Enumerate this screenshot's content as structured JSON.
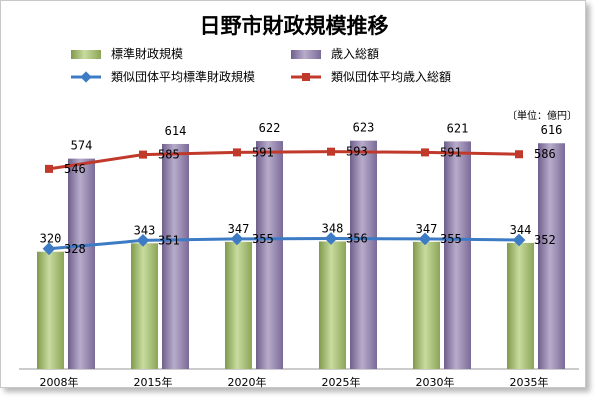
{
  "chart_data": {
    "type": "bar",
    "title": "日野市財政規模推移",
    "unit_label": "〔単位：億円〕",
    "categories": [
      "2008年",
      "2015年",
      "2020年",
      "2025年",
      "2030年",
      "2035年"
    ],
    "ylim": [
      0,
      700
    ],
    "grid": false,
    "legend_position": "top",
    "series": [
      {
        "name": "標準財政規模",
        "kind": "bar",
        "color": "#9bb36a",
        "values": [
          320,
          343,
          347,
          348,
          347,
          344
        ]
      },
      {
        "name": "歳入総額",
        "kind": "bar",
        "color": "#8a7aa3",
        "values": [
          574,
          614,
          622,
          623,
          621,
          616
        ]
      },
      {
        "name": "類似団体平均標準財政規模",
        "kind": "line",
        "color": "#3d7cc4",
        "values": [
          328,
          351,
          355,
          356,
          355,
          352
        ]
      },
      {
        "name": "類似団体平均歳入総額",
        "kind": "line",
        "color": "#c0392b",
        "values": [
          546,
          585,
          591,
          593,
          591,
          586
        ]
      }
    ]
  }
}
